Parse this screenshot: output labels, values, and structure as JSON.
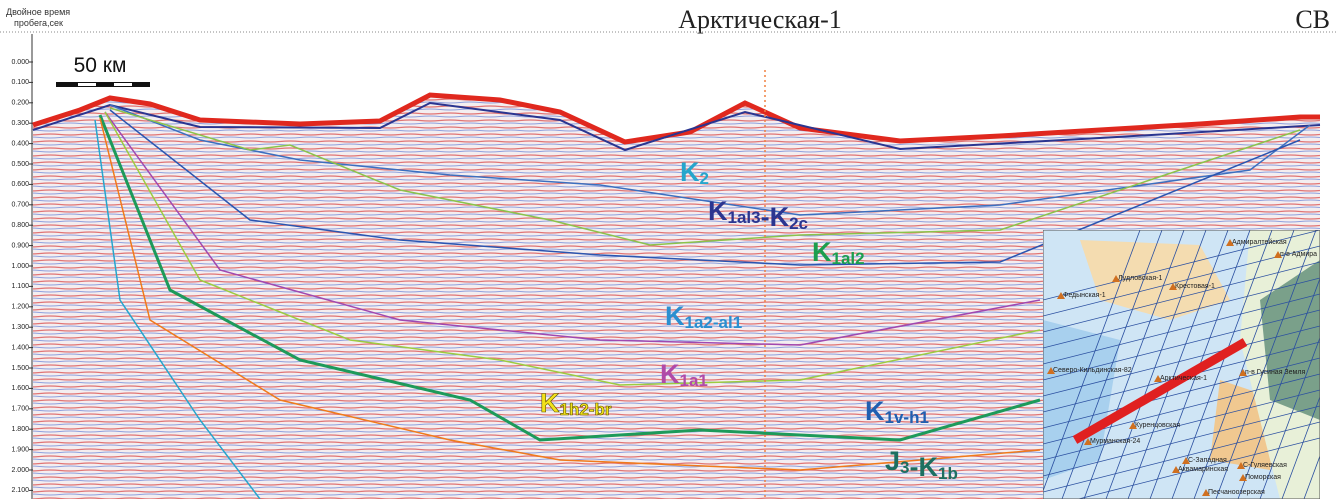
{
  "header": {
    "axis_caption_line1": "Двойное время",
    "axis_caption_line2": "пробега,сек",
    "title": "Арктическая-1",
    "direction": "СВ"
  },
  "scale_bar": "50 км",
  "time_ticks": [
    "0.000",
    "0.100",
    "0.200",
    "0.300",
    "0.400",
    "0.500",
    "0.600",
    "0.700",
    "0.800",
    "0.900",
    "1.000",
    "1.100",
    "1.200",
    "1.300",
    "1.400",
    "1.500",
    "1.600",
    "1.700",
    "1.800",
    "1.900",
    "2.000",
    "2.100"
  ],
  "horizons": [
    {
      "parts": [
        {
          "base": "K",
          "sub": "2"
        }
      ],
      "color": "#25a6cc"
    },
    {
      "parts": [
        {
          "base": "K",
          "sub": "1al3"
        },
        {
          "base": "-K",
          "sub": "2c"
        }
      ],
      "color": "#2b3590"
    },
    {
      "parts": [
        {
          "base": "K",
          "sub": "1al2"
        }
      ],
      "color": "#1c9e4e"
    },
    {
      "parts": [
        {
          "base": "K",
          "sub": "1a2-al1"
        }
      ],
      "color": "#2a8fd0"
    },
    {
      "parts": [
        {
          "base": "K",
          "sub": "1a1"
        }
      ],
      "color": "#b04aa8"
    },
    {
      "parts": [
        {
          "base": "K",
          "sub": "1h2-br"
        }
      ],
      "color": "#f2e21a"
    },
    {
      "parts": [
        {
          "base": "K",
          "sub": "1v-h1"
        }
      ],
      "color": "#1f5fb0"
    },
    {
      "parts": [
        {
          "base": "J",
          "sub": "3"
        },
        {
          "base": "-K",
          "sub": "1b"
        }
      ],
      "color": "#1d6f60"
    }
  ],
  "map": {
    "labels": [
      "Адмиралтейская",
      "п-в Адмира",
      "Лудловская-1",
      "Крестовая-1",
      "Федынская-1",
      "Северо-Кильдинская-82",
      "Арктическая-1",
      "п-в Гусиная Земля",
      "Куренцовская",
      "Мурманская-24",
      "С-Западная",
      "Аквамаринская",
      "С-Гуляевская",
      "Поморская",
      "Песчаноозерская"
    ]
  }
}
